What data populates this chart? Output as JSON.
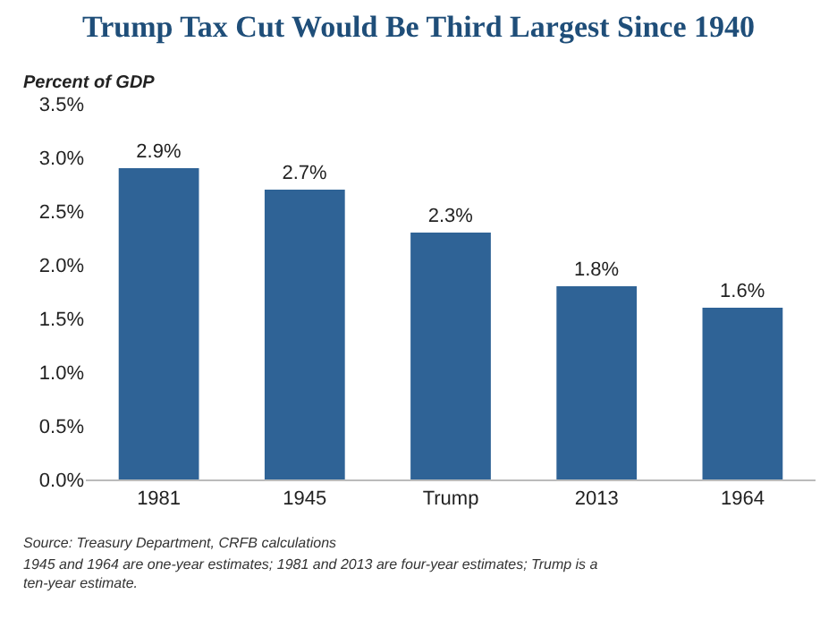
{
  "chart_data": {
    "type": "bar",
    "title": "Trump Tax Cut Would Be Third Largest Since 1940",
    "ylabel": "Percent of GDP",
    "categories": [
      "1981",
      "1945",
      "Trump",
      "2013",
      "1964"
    ],
    "values": [
      2.9,
      2.7,
      2.3,
      1.8,
      1.6
    ],
    "value_labels": [
      "2.9%",
      "2.7%",
      "2.3%",
      "1.8%",
      "1.6%"
    ],
    "color": "#2f6396",
    "ylim": [
      0,
      3.5
    ],
    "yticks": [
      {
        "value": 0,
        "label": "0.0%"
      },
      {
        "value": 0.5,
        "label": "0.5%"
      },
      {
        "value": 1,
        "label": "1.0%"
      },
      {
        "value": 1.5,
        "label": "1.5%"
      },
      {
        "value": 2,
        "label": "2.0%"
      },
      {
        "value": 2.5,
        "label": "2.5%"
      },
      {
        "value": 3,
        "label": "3.0%"
      },
      {
        "value": 3.5,
        "label": "3.5%"
      }
    ],
    "annotations": [
      "Source: Treasury Department, CRFB calculations",
      "1945 and 1964 are one-year estimates; 1981 and 2013 are four-year estimates; Trump is a ten-year estimate."
    ]
  }
}
